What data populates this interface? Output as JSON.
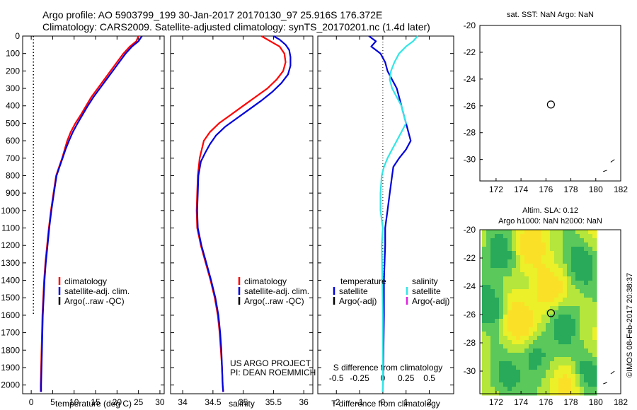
{
  "header": {
    "line1": "Argo profile: AO 5903799_199 30-Jan-2017 20170130_97 25.916S 176.372E",
    "line2": "Climatology: CARS2009. Satellite-adjusted climatology: synTS_20170201.nc (1.4d later)"
  },
  "colors": {
    "climatology": "#ff0000",
    "satellite": "#0000dd",
    "argo": "#000000",
    "sal_satellite": "#33e6e6",
    "argo_adj": "#e020e0"
  },
  "chart_data": [
    {
      "id": "temperature",
      "type": "line",
      "xlabel": "temperature (deg C)",
      "xlim": [
        -2,
        31
      ],
      "xticks": [
        0,
        5,
        10,
        15,
        20,
        25,
        30
      ],
      "ylim": [
        2050,
        0
      ],
      "yticks": [
        0,
        100,
        200,
        300,
        400,
        500,
        600,
        700,
        800,
        900,
        1000,
        1100,
        1200,
        1300,
        1400,
        1500,
        1600,
        1700,
        1800,
        1900,
        2000
      ],
      "legend": [
        "climatology",
        "satellite-adj. clim.",
        "Argo(..raw -QC)"
      ],
      "series": [
        {
          "name": "climatology",
          "color": "#ff0000",
          "points": [
            [
              25,
              0
            ],
            [
              24.5,
              30
            ],
            [
              23,
              60
            ],
            [
              21.5,
              100
            ],
            [
              20,
              150
            ],
            [
              18.5,
              200
            ],
            [
              17,
              250
            ],
            [
              15.5,
              300
            ],
            [
              14,
              350
            ],
            [
              12.8,
              400
            ],
            [
              11.6,
              450
            ],
            [
              10.3,
              500
            ],
            [
              9.2,
              550
            ],
            [
              8.4,
              600
            ],
            [
              7.8,
              650
            ],
            [
              7.2,
              700
            ],
            [
              6.5,
              750
            ],
            [
              5.8,
              800
            ],
            [
              5.2,
              900
            ],
            [
              4.6,
              1000
            ],
            [
              4.1,
              1100
            ],
            [
              3.7,
              1200
            ],
            [
              3.3,
              1300
            ],
            [
              3,
              1400
            ],
            [
              2.8,
              1500
            ],
            [
              2.6,
              1600
            ],
            [
              2.5,
              1700
            ],
            [
              2.4,
              1800
            ],
            [
              2.3,
              1900
            ],
            [
              2.2,
              2000
            ],
            [
              2.2,
              2040
            ]
          ]
        },
        {
          "name": "satellite-adj. clim.",
          "color": "#0000dd",
          "points": [
            [
              25.8,
              0
            ],
            [
              25,
              30
            ],
            [
              23.5,
              60
            ],
            [
              22,
              100
            ],
            [
              20.5,
              150
            ],
            [
              19,
              200
            ],
            [
              17.5,
              250
            ],
            [
              16,
              300
            ],
            [
              14.5,
              350
            ],
            [
              13.2,
              400
            ],
            [
              12,
              450
            ],
            [
              10.8,
              500
            ],
            [
              9.7,
              550
            ],
            [
              8.8,
              600
            ],
            [
              8,
              650
            ],
            [
              7.3,
              700
            ],
            [
              6.6,
              750
            ],
            [
              5.9,
              800
            ],
            [
              5.3,
              900
            ],
            [
              4.7,
              1000
            ],
            [
              4.2,
              1100
            ],
            [
              3.8,
              1200
            ],
            [
              3.4,
              1300
            ],
            [
              3.1,
              1400
            ],
            [
              2.9,
              1500
            ],
            [
              2.7,
              1600
            ],
            [
              2.6,
              1700
            ],
            [
              2.5,
              1800
            ],
            [
              2.4,
              1900
            ],
            [
              2.3,
              2000
            ],
            [
              2.3,
              2040
            ]
          ]
        },
        {
          "name": "Argo(..raw -QC)",
          "color": "#000000",
          "dotted": true,
          "points": [
            [
              0.5,
              0
            ],
            [
              0.5,
              1600
            ]
          ]
        }
      ]
    },
    {
      "id": "salinity",
      "type": "line",
      "xlabel": "salinity",
      "xlim": [
        33.8,
        36.15
      ],
      "xticks": [
        34,
        34.5,
        35,
        35.5,
        36
      ],
      "ylim": [
        2050,
        0
      ],
      "legend": [
        "climatology",
        "satellite-adj. clim.",
        "Argo(..raw -QC)"
      ],
      "annotation": [
        "US ARGO PROJECT",
        "PI: DEAN ROEMMICH"
      ],
      "series": [
        {
          "name": "climatology",
          "color": "#ff0000",
          "points": [
            [
              35.3,
              0
            ],
            [
              35.45,
              30
            ],
            [
              35.6,
              60
            ],
            [
              35.68,
              100
            ],
            [
              35.7,
              150
            ],
            [
              35.66,
              200
            ],
            [
              35.55,
              250
            ],
            [
              35.4,
              300
            ],
            [
              35.2,
              350
            ],
            [
              35,
              400
            ],
            [
              34.8,
              450
            ],
            [
              34.6,
              500
            ],
            [
              34.45,
              550
            ],
            [
              34.35,
              600
            ],
            [
              34.28,
              700
            ],
            [
              34.25,
              800
            ],
            [
              34.24,
              900
            ],
            [
              34.23,
              1000
            ],
            [
              34.24,
              1100
            ],
            [
              34.3,
              1200
            ],
            [
              34.38,
              1300
            ],
            [
              34.46,
              1400
            ],
            [
              34.53,
              1500
            ],
            [
              34.58,
              1600
            ],
            [
              34.61,
              1700
            ],
            [
              34.63,
              1800
            ],
            [
              34.65,
              1900
            ],
            [
              34.66,
              2000
            ],
            [
              34.67,
              2040
            ]
          ]
        },
        {
          "name": "satellite-adj. clim.",
          "color": "#0000dd",
          "points": [
            [
              35.5,
              0
            ],
            [
              35.6,
              20
            ],
            [
              35.7,
              50
            ],
            [
              35.76,
              80
            ],
            [
              35.78,
              120
            ],
            [
              35.78,
              170
            ],
            [
              35.74,
              220
            ],
            [
              35.63,
              270
            ],
            [
              35.48,
              320
            ],
            [
              35.3,
              370
            ],
            [
              35.1,
              420
            ],
            [
              34.9,
              470
            ],
            [
              34.7,
              520
            ],
            [
              34.55,
              570
            ],
            [
              34.45,
              620
            ],
            [
              34.37,
              670
            ],
            [
              34.3,
              720
            ],
            [
              34.26,
              800
            ],
            [
              34.25,
              900
            ],
            [
              34.24,
              1000
            ],
            [
              34.25,
              1100
            ],
            [
              34.31,
              1200
            ],
            [
              34.39,
              1300
            ],
            [
              34.47,
              1400
            ],
            [
              34.54,
              1500
            ],
            [
              34.59,
              1600
            ],
            [
              34.62,
              1700
            ],
            [
              34.64,
              1800
            ],
            [
              34.65,
              1900
            ],
            [
              34.66,
              2000
            ],
            [
              34.67,
              2040
            ]
          ]
        }
      ]
    },
    {
      "id": "difference",
      "type": "line",
      "xlabel": "T difference from climatology",
      "xlabel2": "S difference from climatology",
      "xlim": [
        -2.8,
        3.05
      ],
      "xticks": [
        -2,
        -1,
        0,
        1,
        2
      ],
      "xticks2": [
        -0.5,
        -0.25,
        0,
        0.25,
        0.5
      ],
      "ylim": [
        2050,
        0
      ],
      "legend_titles": [
        "temperature",
        "salinity"
      ],
      "legend": [
        "satellite",
        "Argo(-adj)",
        "satellite",
        "Argo(-adj)"
      ],
      "series": [
        {
          "name": "temperature satellite",
          "color": "#0000dd",
          "points": [
            [
              -0.6,
              0
            ],
            [
              -0.3,
              30
            ],
            [
              -0.5,
              60
            ],
            [
              -0.1,
              100
            ],
            [
              0.1,
              150
            ],
            [
              0.2,
              200
            ],
            [
              0.4,
              250
            ],
            [
              0.6,
              300
            ],
            [
              0.7,
              350
            ],
            [
              0.8,
              400
            ],
            [
              0.9,
              450
            ],
            [
              1.0,
              500
            ],
            [
              1.1,
              550
            ],
            [
              1.2,
              600
            ],
            [
              1.0,
              650
            ],
            [
              0.7,
              700
            ],
            [
              0.45,
              750
            ],
            [
              0.4,
              800
            ],
            [
              0.3,
              900
            ],
            [
              0.2,
              1000
            ],
            [
              0.1,
              1100
            ],
            [
              0.1,
              1200
            ],
            [
              0.05,
              1400
            ],
            [
              0.05,
              1600
            ],
            [
              0.0,
              2040
            ]
          ]
        },
        {
          "name": "salinity satellite",
          "color": "#33e6e6",
          "points": [
            [
              1.5,
              0
            ],
            [
              1.3,
              30
            ],
            [
              1.0,
              60
            ],
            [
              0.7,
              100
            ],
            [
              0.5,
              150
            ],
            [
              0.35,
              200
            ],
            [
              0.3,
              250
            ],
            [
              0.4,
              300
            ],
            [
              0.6,
              350
            ],
            [
              0.8,
              400
            ],
            [
              0.9,
              450
            ],
            [
              1.0,
              500
            ],
            [
              0.8,
              550
            ],
            [
              0.6,
              600
            ],
            [
              0.4,
              650
            ],
            [
              0.2,
              700
            ],
            [
              0.05,
              750
            ],
            [
              -0.05,
              800
            ],
            [
              -0.1,
              900
            ],
            [
              -0.1,
              1000
            ],
            [
              0.0,
              1100
            ],
            [
              -0.05,
              1200
            ],
            [
              -0.02,
              1400
            ],
            [
              0.0,
              1600
            ],
            [
              0.0,
              2040
            ]
          ]
        }
      ]
    },
    {
      "id": "sst_map",
      "type": "scatter",
      "title": "sat. SST: NaN Argo: NaN",
      "xlim": [
        170.7,
        182
      ],
      "ylim": [
        -31.6,
        -20
      ],
      "xticks": [
        172,
        174,
        176,
        178,
        180,
        182
      ],
      "yticks": [
        -20,
        -22,
        -24,
        -26,
        -28,
        -30
      ],
      "points": [
        {
          "x": 176.4,
          "y": -25.9
        }
      ]
    },
    {
      "id": "sla_map",
      "type": "heatmap",
      "title": "Altim. SLA: 0.12",
      "title2": "Argo h1000: NaN h2000: NaN",
      "xlim": [
        170.7,
        182
      ],
      "ylim": [
        -31.6,
        -20
      ],
      "xticks": [
        172,
        174,
        176,
        178,
        180,
        182
      ],
      "yticks": [
        -20,
        -22,
        -24,
        -26,
        -28,
        -30
      ],
      "points": [
        {
          "x": 176.4,
          "y": -25.9
        }
      ]
    }
  ],
  "footer": {
    "stamp": "©IMOS 08-Feb-2017 20:38:37"
  }
}
